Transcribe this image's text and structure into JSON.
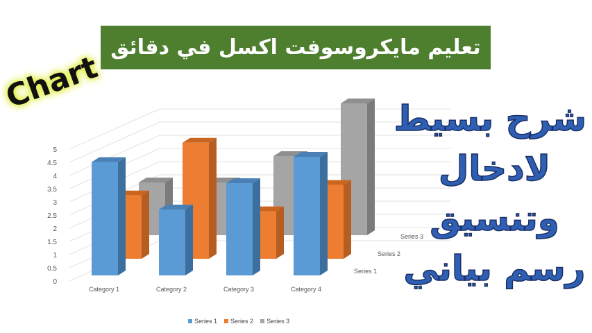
{
  "banner": {
    "title": "تعليم مايكروسوفت اكسل في دقائق"
  },
  "overlay": {
    "chart_word": "Chart",
    "lines": [
      "شرح بسيط",
      "لادخال",
      "وتنسيق",
      "رسم بياني"
    ]
  },
  "colors": {
    "series1": "#5b9bd5",
    "series2": "#ed7d31",
    "series3": "#a5a5a5",
    "banner": "#4e7f2e",
    "side_text": "#2f5fb3"
  },
  "chart_data": {
    "type": "bar",
    "categories": [
      "Category 1",
      "Category 2",
      "Category 3",
      "Category 4"
    ],
    "series": [
      {
        "name": "Series 1",
        "values": [
          4.3,
          2.5,
          3.5,
          4.5
        ]
      },
      {
        "name": "Series 2",
        "values": [
          2.4,
          4.4,
          1.8,
          2.8
        ]
      },
      {
        "name": "Series 3",
        "values": [
          2,
          2,
          3,
          5
        ]
      }
    ],
    "yticks": [
      "0",
      "0.5",
      "1",
      "1.5",
      "2",
      "2.5",
      "3",
      "3.5",
      "4",
      "4.5",
      "5"
    ],
    "ylim": [
      0,
      5
    ],
    "grid": true,
    "legend": "bottom",
    "style": "3d-clustered-column"
  }
}
